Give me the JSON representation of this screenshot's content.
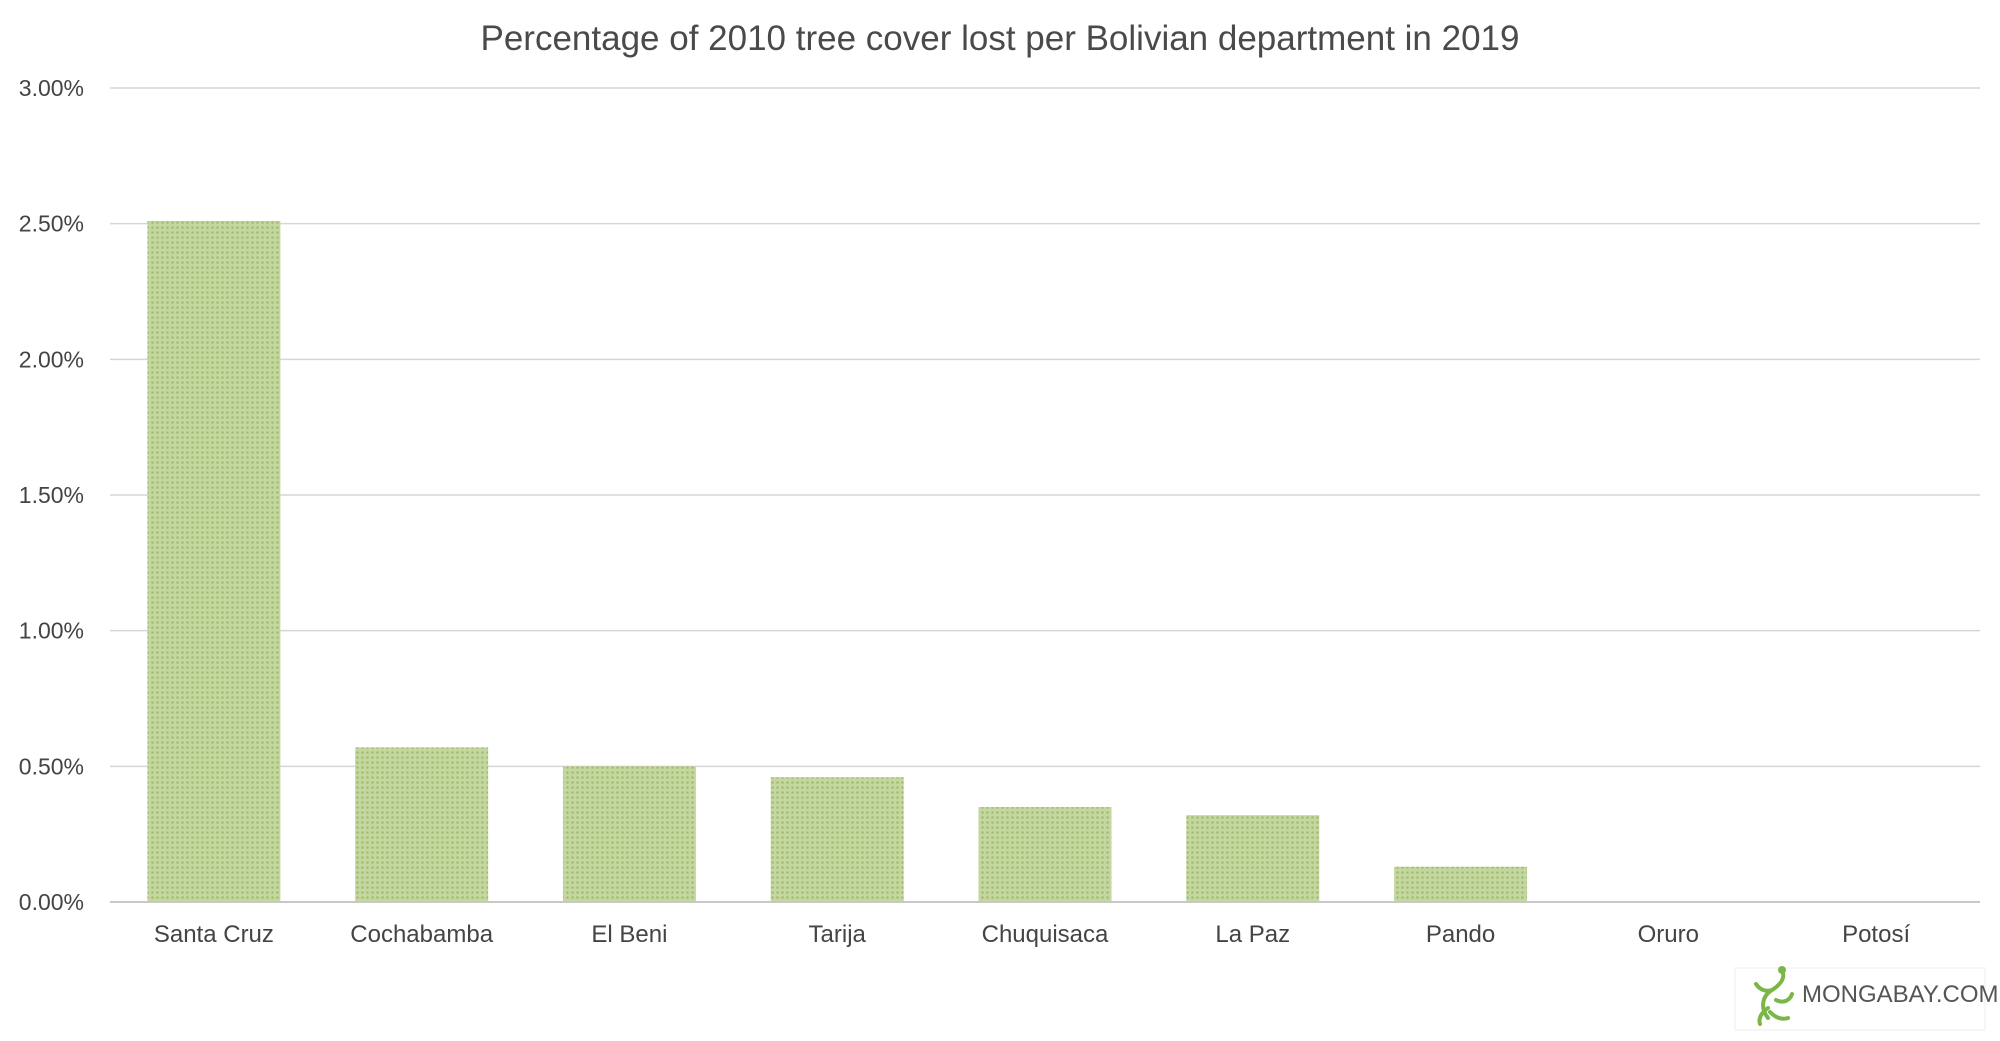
{
  "chart_data": {
    "type": "bar",
    "title": "Percentage of 2010 tree cover lost per Bolivian department in 2019",
    "xlabel": "",
    "ylabel": "",
    "categories": [
      "Santa Cruz",
      "Cochabamba",
      "El Beni",
      "Tarija",
      "Chuquisaca",
      "La Paz",
      "Pando",
      "Oruro",
      "Potosí"
    ],
    "values": [
      2.51,
      0.57,
      0.5,
      0.46,
      0.35,
      0.32,
      0.13,
      0.0,
      0.0
    ],
    "ylim": [
      0,
      3
    ],
    "yticks": [
      0,
      0.5,
      1.0,
      1.5,
      2.0,
      2.5,
      3.0
    ],
    "ytick_labels": [
      "0.00%",
      "0.50%",
      "1.00%",
      "1.50%",
      "2.00%",
      "2.50%",
      "3.00%"
    ],
    "grid": true,
    "legend": "none",
    "bar_color": "#b6cc8a",
    "bar_dot_color": "#a3bd70"
  },
  "watermark": {
    "text": "MONGABAY.COM",
    "icon": "gecko-logo-icon",
    "color": "#7ab648"
  }
}
